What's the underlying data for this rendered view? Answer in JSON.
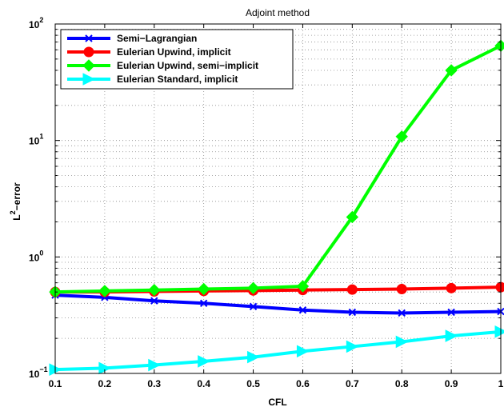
{
  "chart_data": {
    "type": "line",
    "title": "Adjoint method",
    "xlabel": "CFL",
    "ylabel_base": "L",
    "ylabel_sup": "2",
    "ylabel_rest": "−error",
    "xlim": [
      0.1,
      1
    ],
    "ylim": [
      0.1,
      100
    ],
    "yscale": "log",
    "grid": true,
    "legend_position": "top-left",
    "x_ticks": [
      0.1,
      0.2,
      0.3,
      0.4,
      0.5,
      0.6,
      0.7,
      0.8,
      0.9,
      1
    ],
    "x_tick_labels": [
      "0.1",
      "0.2",
      "0.3",
      "0.4",
      "0.5",
      "0.6",
      "0.7",
      "0.8",
      "0.9",
      "1"
    ],
    "y_ticks": [
      {
        "value": 0.1,
        "base": "10",
        "exp": "−1"
      },
      {
        "value": 1,
        "base": "10",
        "exp": "0"
      },
      {
        "value": 10,
        "base": "10",
        "exp": "1"
      },
      {
        "value": 100,
        "base": "10",
        "exp": "2"
      }
    ],
    "x": [
      0.1,
      0.2,
      0.3,
      0.4,
      0.5,
      0.6,
      0.7,
      0.8,
      0.9,
      1
    ],
    "series": [
      {
        "name": "Semi−Lagrangian",
        "color": "#0000ff",
        "marker": "x",
        "values": [
          0.47,
          0.45,
          0.42,
          0.4,
          0.375,
          0.35,
          0.335,
          0.33,
          0.335,
          0.34
        ]
      },
      {
        "name": "Eulerian Upwind, implicit",
        "color": "#ff0000",
        "marker": "circle",
        "values": [
          0.5,
          0.5,
          0.505,
          0.51,
          0.515,
          0.52,
          0.525,
          0.53,
          0.54,
          0.55
        ]
      },
      {
        "name": "Eulerian Upwind, semi−implicit",
        "color": "#00ff00",
        "marker": "diamond",
        "values": [
          0.5,
          0.51,
          0.52,
          0.53,
          0.54,
          0.56,
          2.2,
          10.8,
          40,
          65
        ]
      },
      {
        "name": "Eulerian Standard, implicit",
        "color": "#00ffff",
        "marker": "triangle-right",
        "values": [
          0.108,
          0.111,
          0.118,
          0.127,
          0.138,
          0.155,
          0.17,
          0.187,
          0.21,
          0.228
        ]
      }
    ]
  }
}
